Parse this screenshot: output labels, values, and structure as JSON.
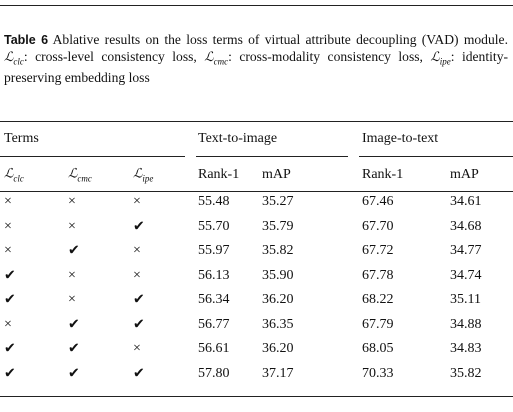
{
  "caption": {
    "label": "Table 6",
    "segments": [
      "Ablative results on the loss terms of virtual attribute decoupling (VAD) module. ",
      {
        "sym": "ℒ",
        "sub": "clc"
      },
      ": cross-level consistency loss, ",
      {
        "sym": "ℒ",
        "sub": "cmc"
      },
      ": cross-modality consistency loss, ",
      {
        "sym": "ℒ",
        "sub": "ipe"
      },
      ": identity-preserving embedding loss"
    ]
  },
  "table": {
    "header": [
      "Terms",
      "Text-to-image",
      "Image-to-text"
    ],
    "subheader": [
      {
        "sym": "ℒ",
        "sub": "clc"
      },
      {
        "sym": "ℒ",
        "sub": "cmc"
      },
      {
        "sym": "ℒ",
        "sub": "ipe"
      },
      "Rank-1",
      "mAP",
      "Rank-1",
      "mAP"
    ],
    "rows": [
      [
        "×",
        "×",
        "×",
        "55.48",
        "35.27",
        "67.46",
        "34.61"
      ],
      [
        "×",
        "×",
        "✔",
        "55.70",
        "35.79",
        "67.70",
        "34.68"
      ],
      [
        "×",
        "✔",
        "×",
        "55.97",
        "35.82",
        "67.72",
        "34.77"
      ],
      [
        "✔",
        "×",
        "×",
        "56.13",
        "35.90",
        "67.78",
        "34.74"
      ],
      [
        "✔",
        "×",
        "✔",
        "56.34",
        "36.20",
        "68.22",
        "35.11"
      ],
      [
        "×",
        "✔",
        "✔",
        "56.77",
        "36.35",
        "67.79",
        "34.88"
      ],
      [
        "✔",
        "✔",
        "×",
        "56.61",
        "36.20",
        "68.05",
        "34.83"
      ],
      [
        "✔",
        "✔",
        "✔",
        "57.80",
        "37.17",
        "70.33",
        "35.82"
      ]
    ]
  }
}
